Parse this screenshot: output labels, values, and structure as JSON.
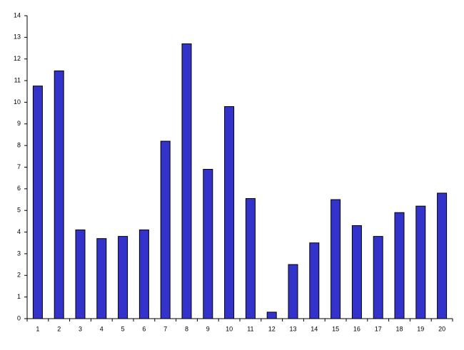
{
  "chart_data": {
    "type": "bar",
    "categories": [
      "1",
      "2",
      "3",
      "4",
      "5",
      "6",
      "7",
      "8",
      "9",
      "10",
      "11",
      "12",
      "13",
      "14",
      "15",
      "16",
      "17",
      "18",
      "19",
      "20"
    ],
    "values": [
      10.75,
      11.45,
      4.1,
      3.7,
      3.8,
      4.1,
      8.2,
      12.7,
      6.9,
      9.8,
      5.55,
      0.3,
      2.5,
      3.5,
      5.5,
      4.3,
      3.8,
      4.9,
      5.2,
      5.8
    ],
    "color": "#3333cc",
    "ylim": [
      0,
      14
    ],
    "yticks": [
      0,
      1,
      2,
      3,
      4,
      5,
      6,
      7,
      8,
      9,
      10,
      11,
      12,
      13,
      14
    ],
    "grid": false
  }
}
